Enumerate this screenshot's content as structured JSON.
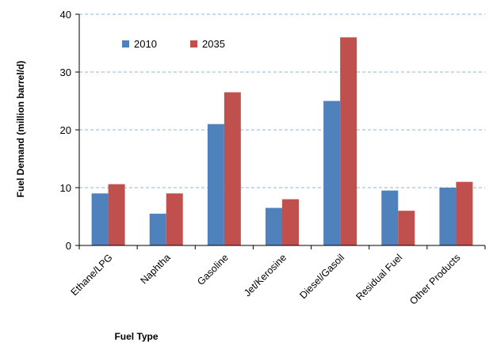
{
  "chart_data": {
    "type": "bar",
    "title": "",
    "xlabel": "Fuel Type",
    "ylabel": "Fuel Demand  (million  barrel/d)",
    "categories": [
      "Ethane/LPG",
      "Naphtha",
      "Gasoline",
      "Jet/Kerosine",
      "Diesel/Gasoil",
      "Residual Fuel",
      "Other Products"
    ],
    "series": [
      {
        "name": "2010",
        "color": "#4F81BD",
        "values": [
          9.0,
          5.5,
          21.0,
          6.5,
          25.0,
          9.5,
          10.0
        ]
      },
      {
        "name": "2035",
        "color": "#C0504D",
        "values": [
          10.6,
          9.0,
          26.5,
          8.0,
          36.0,
          6.0,
          11.0
        ]
      }
    ],
    "ylim": [
      0,
      40
    ],
    "yticks": [
      0,
      10,
      20,
      30,
      40
    ],
    "grid": "horizontal dashed",
    "grid_color": "#8EB4E3",
    "legend_position": "top-left inside"
  }
}
